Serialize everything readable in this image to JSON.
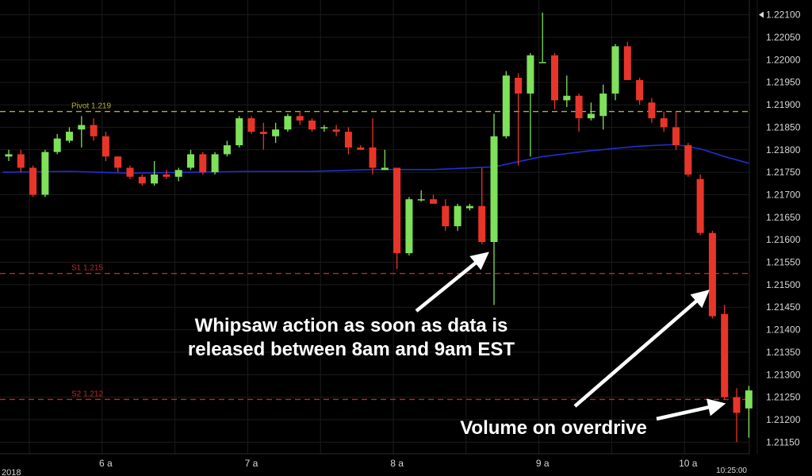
{
  "chart_data": {
    "type": "candlestick",
    "y_axis": {
      "side": "right",
      "range": [
        1.2114,
        1.2211
      ],
      "ticks": [
        "1.22100",
        "1.22050",
        "1.22000",
        "1.21950",
        "1.21900",
        "1.21850",
        "1.21800",
        "1.21750",
        "1.21700",
        "1.21650",
        "1.21600",
        "1.21550",
        "1.21500",
        "1.21450",
        "1.21400",
        "1.21350",
        "1.21300",
        "1.21250",
        "1.21200",
        "1.21150"
      ],
      "current_price_marker": "1.22100"
    },
    "x_axis": {
      "ticks": [
        {
          "label": "6 a",
          "t": 8
        },
        {
          "label": "7 a",
          "t": 20
        },
        {
          "label": "8 a",
          "t": 32
        },
        {
          "label": "9 a",
          "t": 44
        },
        {
          "label": "10 a",
          "t": 56
        }
      ],
      "year_label": "2018",
      "time_label": "10:25:00"
    },
    "grid": true,
    "levels": [
      {
        "label": "Pivot 1.219",
        "value": 1.21885,
        "color": "#b5b02a"
      },
      {
        "label": "S1 1.215",
        "value": 1.21525,
        "color": "#c0282a"
      },
      {
        "label": "S2 1.212",
        "value": 1.21245,
        "color": "#c0282a"
      }
    ],
    "moving_average": {
      "color": "#1f2fd0",
      "points": [
        [
          -0.5,
          1.2175
        ],
        [
          5,
          1.21752
        ],
        [
          10,
          1.21748
        ],
        [
          15,
          1.2175
        ],
        [
          20,
          1.21752
        ],
        [
          25,
          1.21752
        ],
        [
          30,
          1.21756
        ],
        [
          35,
          1.21756
        ],
        [
          40,
          1.21762
        ],
        [
          44,
          1.21785
        ],
        [
          48,
          1.21798
        ],
        [
          52,
          1.21808
        ],
        [
          55,
          1.21812
        ],
        [
          57,
          1.21802
        ],
        [
          59,
          1.21785
        ],
        [
          61,
          1.2177
        ]
      ]
    },
    "candles": [
      {
        "t": 0,
        "o": 1.21785,
        "h": 1.218,
        "l": 1.21775,
        "c": 1.2179
      },
      {
        "t": 1,
        "o": 1.2179,
        "h": 1.218,
        "l": 1.2175,
        "c": 1.2176
      },
      {
        "t": 2,
        "o": 1.2176,
        "h": 1.21765,
        "l": 1.21695,
        "c": 1.217
      },
      {
        "t": 3,
        "o": 1.217,
        "h": 1.218,
        "l": 1.21695,
        "c": 1.21795
      },
      {
        "t": 4,
        "o": 1.21795,
        "h": 1.21835,
        "l": 1.2179,
        "c": 1.21825
      },
      {
        "t": 5,
        "o": 1.2182,
        "h": 1.2185,
        "l": 1.21815,
        "c": 1.2184
      },
      {
        "t": 6,
        "o": 1.21845,
        "h": 1.21875,
        "l": 1.21805,
        "c": 1.21855
      },
      {
        "t": 7,
        "o": 1.21855,
        "h": 1.2187,
        "l": 1.2182,
        "c": 1.2183
      },
      {
        "t": 8,
        "o": 1.2183,
        "h": 1.2184,
        "l": 1.21775,
        "c": 1.21785
      },
      {
        "t": 9,
        "o": 1.21785,
        "h": 1.21785,
        "l": 1.2175,
        "c": 1.2176
      },
      {
        "t": 10,
        "o": 1.2176,
        "h": 1.21765,
        "l": 1.21735,
        "c": 1.2174
      },
      {
        "t": 11,
        "o": 1.2174,
        "h": 1.21745,
        "l": 1.2172,
        "c": 1.21725
      },
      {
        "t": 12,
        "o": 1.21725,
        "h": 1.21775,
        "l": 1.2172,
        "c": 1.21745
      },
      {
        "t": 13,
        "o": 1.21745,
        "h": 1.21755,
        "l": 1.21735,
        "c": 1.2174
      },
      {
        "t": 14,
        "o": 1.2174,
        "h": 1.2176,
        "l": 1.2173,
        "c": 1.21755
      },
      {
        "t": 15,
        "o": 1.2176,
        "h": 1.218,
        "l": 1.21755,
        "c": 1.2179
      },
      {
        "t": 16,
        "o": 1.2179,
        "h": 1.21795,
        "l": 1.21745,
        "c": 1.2175
      },
      {
        "t": 17,
        "o": 1.2175,
        "h": 1.21795,
        "l": 1.21745,
        "c": 1.2179
      },
      {
        "t": 18,
        "o": 1.2179,
        "h": 1.2182,
        "l": 1.21785,
        "c": 1.2181
      },
      {
        "t": 19,
        "o": 1.2181,
        "h": 1.21875,
        "l": 1.21805,
        "c": 1.2187
      },
      {
        "t": 20,
        "o": 1.2187,
        "h": 1.21875,
        "l": 1.21835,
        "c": 1.2184
      },
      {
        "t": 21,
        "o": 1.2184,
        "h": 1.2186,
        "l": 1.218,
        "c": 1.21835
      },
      {
        "t": 22,
        "o": 1.2183,
        "h": 1.2186,
        "l": 1.21815,
        "c": 1.21845
      },
      {
        "t": 23,
        "o": 1.21845,
        "h": 1.2188,
        "l": 1.2184,
        "c": 1.21875
      },
      {
        "t": 24,
        "o": 1.21875,
        "h": 1.21885,
        "l": 1.21855,
        "c": 1.21865
      },
      {
        "t": 25,
        "o": 1.21865,
        "h": 1.2187,
        "l": 1.2184,
        "c": 1.21845
      },
      {
        "t": 26,
        "o": 1.2185,
        "h": 1.21855,
        "l": 1.2184,
        "c": 1.2185
      },
      {
        "t": 27,
        "o": 1.21845,
        "h": 1.21855,
        "l": 1.2183,
        "c": 1.2184
      },
      {
        "t": 28,
        "o": 1.2184,
        "h": 1.2185,
        "l": 1.2179,
        "c": 1.21805
      },
      {
        "t": 29,
        "o": 1.21805,
        "h": 1.2181,
        "l": 1.218,
        "c": 1.218
      },
      {
        "t": 30,
        "o": 1.21805,
        "h": 1.2187,
        "l": 1.21745,
        "c": 1.2176
      },
      {
        "t": 31,
        "o": 1.21755,
        "h": 1.218,
        "l": 1.21755,
        "c": 1.2176
      },
      {
        "t": 32,
        "o": 1.2176,
        "h": 1.2176,
        "l": 1.21535,
        "c": 1.2157
      },
      {
        "t": 33,
        "o": 1.2157,
        "h": 1.21695,
        "l": 1.21565,
        "c": 1.2169
      },
      {
        "t": 34,
        "o": 1.2169,
        "h": 1.2171,
        "l": 1.21685,
        "c": 1.2169
      },
      {
        "t": 35,
        "o": 1.2169,
        "h": 1.217,
        "l": 1.2168,
        "c": 1.2168
      },
      {
        "t": 36,
        "o": 1.21675,
        "h": 1.2169,
        "l": 1.2162,
        "c": 1.2163
      },
      {
        "t": 37,
        "o": 1.2163,
        "h": 1.2168,
        "l": 1.2162,
        "c": 1.21675
      },
      {
        "t": 38,
        "o": 1.2167,
        "h": 1.2168,
        "l": 1.21665,
        "c": 1.21675
      },
      {
        "t": 39,
        "o": 1.21675,
        "h": 1.2176,
        "l": 1.2159,
        "c": 1.21595
      },
      {
        "t": 40,
        "o": 1.21595,
        "h": 1.2188,
        "l": 1.21455,
        "c": 1.2183
      },
      {
        "t": 41,
        "o": 1.2183,
        "h": 1.21975,
        "l": 1.21825,
        "c": 1.21965
      },
      {
        "t": 42,
        "o": 1.2196,
        "h": 1.2197,
        "l": 1.21765,
        "c": 1.21925
      },
      {
        "t": 43,
        "o": 1.21925,
        "h": 1.22015,
        "l": 1.21785,
        "c": 1.2201
      },
      {
        "t": 44,
        "o": 1.21995,
        "h": 1.22105,
        "l": 1.21995,
        "c": 1.21995
      },
      {
        "t": 45,
        "o": 1.2201,
        "h": 1.22015,
        "l": 1.2189,
        "c": 1.2191
      },
      {
        "t": 46,
        "o": 1.2191,
        "h": 1.21965,
        "l": 1.21895,
        "c": 1.2192
      },
      {
        "t": 47,
        "o": 1.2192,
        "h": 1.21925,
        "l": 1.2184,
        "c": 1.2187
      },
      {
        "t": 48,
        "o": 1.2187,
        "h": 1.21905,
        "l": 1.21865,
        "c": 1.2188
      },
      {
        "t": 49,
        "o": 1.21875,
        "h": 1.21945,
        "l": 1.21845,
        "c": 1.21925
      },
      {
        "t": 50,
        "o": 1.21925,
        "h": 1.22035,
        "l": 1.2191,
        "c": 1.2203
      },
      {
        "t": 51,
        "o": 1.2203,
        "h": 1.2204,
        "l": 1.21955,
        "c": 1.21955
      },
      {
        "t": 52,
        "o": 1.21955,
        "h": 1.2196,
        "l": 1.219,
        "c": 1.2191
      },
      {
        "t": 53,
        "o": 1.21905,
        "h": 1.21915,
        "l": 1.2186,
        "c": 1.2187
      },
      {
        "t": 54,
        "o": 1.2187,
        "h": 1.21885,
        "l": 1.2184,
        "c": 1.2185
      },
      {
        "t": 55,
        "o": 1.2185,
        "h": 1.21885,
        "l": 1.218,
        "c": 1.2181
      },
      {
        "t": 56,
        "o": 1.2181,
        "h": 1.21815,
        "l": 1.2174,
        "c": 1.21745
      },
      {
        "t": 57,
        "o": 1.21735,
        "h": 1.21745,
        "l": 1.2161,
        "c": 1.21615
      },
      {
        "t": 58,
        "o": 1.21615,
        "h": 1.2162,
        "l": 1.21425,
        "c": 1.2143
      },
      {
        "t": 59,
        "o": 1.21435,
        "h": 1.21455,
        "l": 1.21245,
        "c": 1.2125
      },
      {
        "t": 60,
        "o": 1.2125,
        "h": 1.2127,
        "l": 1.2115,
        "c": 1.21215
      },
      {
        "t": 61,
        "o": 1.21225,
        "h": 1.21275,
        "l": 1.2116,
        "c": 1.21265
      }
    ],
    "annotations": [
      {
        "id": "whipsaw",
        "lines": [
          "Whipsaw action as soon as data is",
          "released between 8am and 9am EST"
        ],
        "arrow_to": {
          "t": 39.5,
          "value": 1.21575
        }
      },
      {
        "id": "volume",
        "lines": [
          "Volume on overdrive"
        ],
        "arrow_to": [
          {
            "t": 58.2,
            "value": 1.21505
          },
          {
            "t": 59.6,
            "value": 1.21245
          }
        ]
      }
    ]
  }
}
